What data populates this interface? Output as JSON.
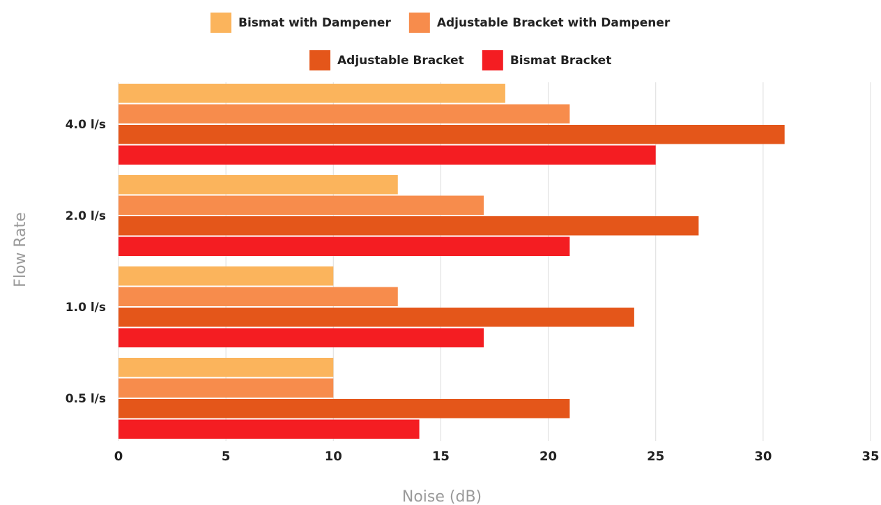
{
  "chart_data": {
    "type": "bar",
    "orientation": "horizontal",
    "title": "",
    "xlabel": "Noise (dB)",
    "ylabel": "Flow Rate",
    "categories": [
      "4.0 l/s",
      "2.0 l/s",
      "1.0 l/s",
      "0.5 l/s"
    ],
    "series": [
      {
        "name": "Bismat with Dampener",
        "color": "#fbb45c",
        "values": [
          18,
          13,
          10,
          10
        ]
      },
      {
        "name": "Adjustable Bracket with Dampener",
        "color": "#f78c4c",
        "values": [
          21,
          17,
          13,
          10
        ]
      },
      {
        "name": "Adjustable Bracket",
        "color": "#e4561a",
        "values": [
          31,
          27,
          24,
          21
        ]
      },
      {
        "name": "Bismat Bracket",
        "color": "#f41d22",
        "values": [
          25,
          21,
          17,
          14
        ]
      }
    ],
    "xlim": [
      0,
      35
    ],
    "xticks": [
      0,
      5,
      10,
      15,
      20,
      25,
      30,
      35
    ],
    "grid": "vertical",
    "legend_position": "top"
  }
}
